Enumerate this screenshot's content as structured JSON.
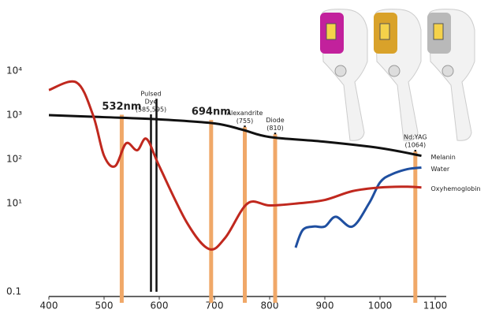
{
  "chart_data": {
    "type": "line",
    "log_y": true,
    "xlim": [
      400,
      1100
    ],
    "xticks": [
      400,
      500,
      600,
      700,
      800,
      900,
      1000,
      1100
    ],
    "ylim": [
      0.1,
      10000
    ],
    "yticks": [
      {
        "value": 10000,
        "label": "10⁴"
      },
      {
        "value": 1000,
        "label": "10³"
      },
      {
        "value": 100,
        "label": "10²"
      },
      {
        "value": 10,
        "label": "10¹"
      },
      0.1
    ],
    "series": [
      {
        "name": "Melanin",
        "color": "#111111",
        "x": [
          400,
          500,
          600,
          700,
          750,
          800,
          900,
          1000,
          1075
        ],
        "values": [
          1000,
          900,
          800,
          650,
          470,
          320,
          250,
          180,
          120
        ]
      },
      {
        "name": "Water",
        "color": "#1f4fa0",
        "x": [
          847,
          860,
          880,
          900,
          920,
          950,
          980,
          1000,
          1020,
          1050,
          1075
        ],
        "values": [
          1,
          2.5,
          3,
          3,
          5,
          3,
          10,
          30,
          45,
          60,
          65
        ]
      },
      {
        "name": "Oxyhemoglobin",
        "color": "#c0281e",
        "x": [
          400,
          450,
          480,
          500,
          520,
          540,
          560,
          577,
          600,
          650,
          690,
          720,
          760,
          800,
          850,
          900,
          950,
          1000,
          1050,
          1075
        ],
        "values": [
          3700,
          5500,
          1000,
          120,
          70,
          230,
          160,
          290,
          70,
          3.7,
          0.93,
          1.7,
          10,
          9,
          10,
          12,
          19,
          23,
          24,
          23
        ]
      }
    ],
    "wavelength_lines": [
      {
        "x": 585,
        "color": "#111111",
        "label": [
          "Pulsed",
          "Dye",
          "(585,595)"
        ]
      },
      {
        "x": 595,
        "color": "#111111"
      },
      {
        "x": 755,
        "color": "#111111",
        "label": [
          "Alexandrite",
          "(755)"
        ]
      },
      {
        "x": 810,
        "color": "#111111",
        "label": [
          "Diode",
          "(810)"
        ]
      },
      {
        "x": 1064,
        "color": "#111111",
        "label": [
          "Nd:YAG",
          "(1064)"
        ]
      },
      {
        "x": 532,
        "color": "#f0a868",
        "label": [
          "532nm"
        ]
      },
      {
        "x": 694,
        "color": "#f0a868",
        "label": [
          "694nm"
        ]
      },
      {
        "x": 755,
        "color": "#f0a868"
      },
      {
        "x": 810,
        "color": "#f0a868"
      },
      {
        "x": 1064,
        "color": "#f0a868"
      }
    ]
  }
}
